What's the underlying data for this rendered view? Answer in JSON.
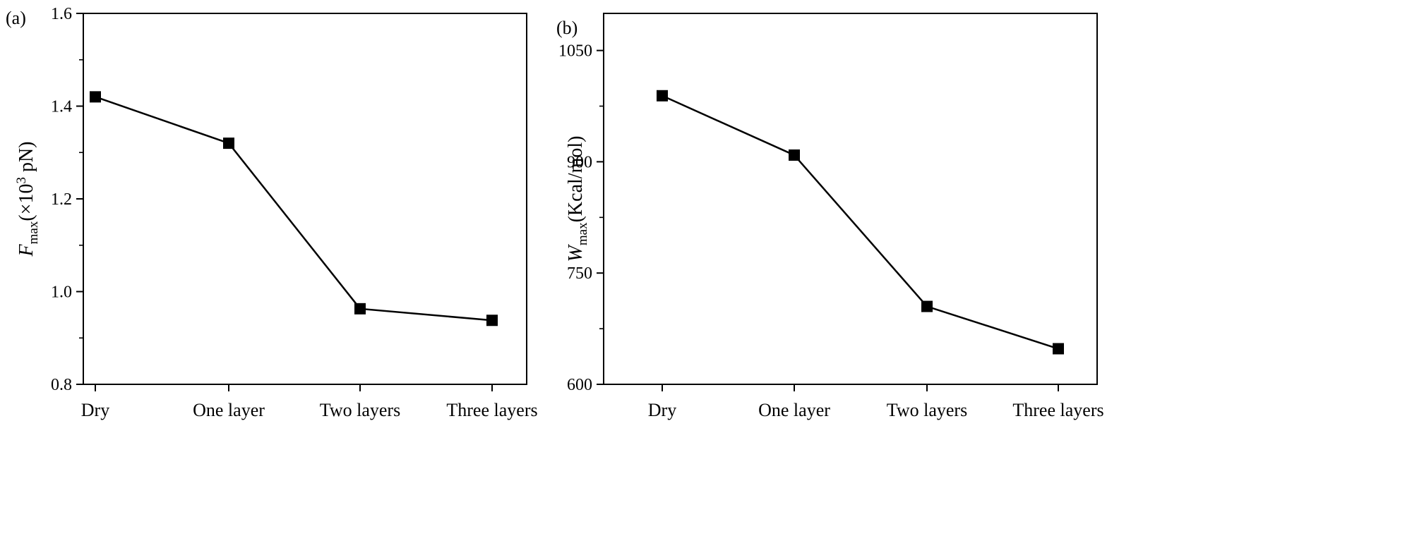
{
  "chart_data": [
    {
      "panel_label": "(a)",
      "type": "line",
      "categories": [
        "Dry",
        "One layer",
        "Two layers",
        "Three layers"
      ],
      "series": [
        {
          "values": [
            1.42,
            1.32,
            0.963,
            0.938
          ],
          "marker": "square",
          "color": "#000000"
        }
      ],
      "ylabel": {
        "main": "F",
        "sub": "max",
        "pre": "(×10",
        "sup": "3",
        "post": " pN)"
      },
      "ylim": [
        0.8,
        1.6
      ],
      "yticks": [
        0.8,
        1.0,
        1.2,
        1.4,
        1.6
      ],
      "ytick_labels": [
        "0.8",
        "1.0",
        "1.2",
        "1.4",
        "1.6"
      ],
      "grid": false
    },
    {
      "panel_label": "(b)",
      "type": "line",
      "categories": [
        "Dry",
        "One layer",
        "Two layers",
        "Three layers"
      ],
      "series": [
        {
          "values": [
            989,
            909,
            705,
            648
          ],
          "marker": "square",
          "color": "#000000"
        }
      ],
      "ylabel": {
        "main": "W",
        "sub": "max",
        "pre": "(Kcal/mol)",
        "sup": "",
        "post": ""
      },
      "ylim": [
        600,
        1100
      ],
      "yticks": [
        600,
        750,
        900,
        1050
      ],
      "ytick_labels": [
        "600",
        "750",
        "900",
        "1050"
      ],
      "grid": false
    }
  ]
}
